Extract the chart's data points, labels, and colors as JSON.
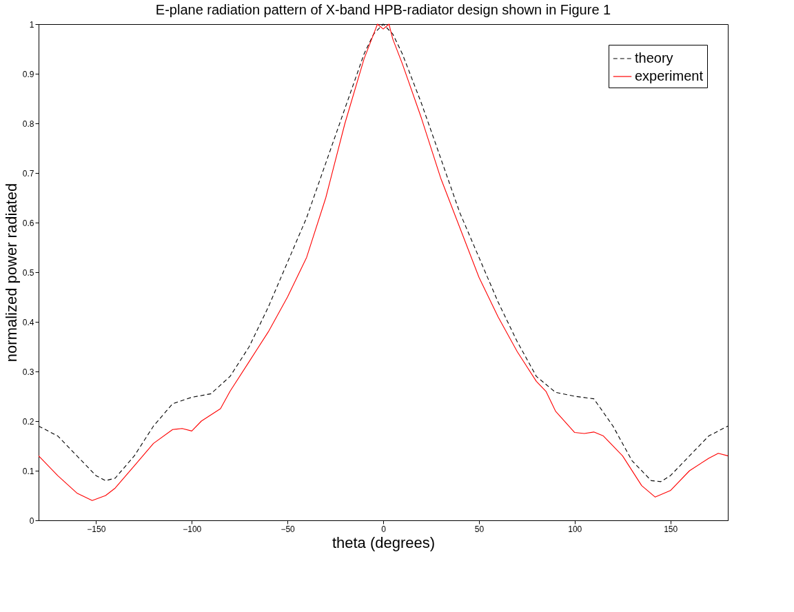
{
  "chart_data": {
    "type": "line",
    "title": "E-plane radiation pattern of X-band HPB-radiator design shown in Figure 1",
    "xlabel": "theta (degrees)",
    "ylabel": "normalized power radiated",
    "xlim": [
      -180,
      180
    ],
    "xticks": [
      -150,
      -100,
      -50,
      0,
      50,
      100,
      150
    ],
    "ylim": [
      0,
      1
    ],
    "yticks": [
      0,
      0.1,
      0.2,
      0.3,
      0.4,
      0.5,
      0.6,
      0.7,
      0.8,
      0.9,
      1
    ],
    "grid": false,
    "legend": "top right",
    "marker": "none",
    "series": [
      {
        "name": "theory",
        "color": "#000000",
        "line_style": "dashed",
        "x": [
          -180,
          -170,
          -160,
          -150,
          -145,
          -140,
          -130,
          -120,
          -110,
          -100,
          -90,
          -80,
          -70,
          -60,
          -50,
          -40,
          -30,
          -20,
          -10,
          -5,
          0,
          5,
          10,
          20,
          30,
          40,
          50,
          60,
          70,
          80,
          90,
          100,
          110,
          120,
          130,
          140,
          145,
          150,
          160,
          170,
          180
        ],
        "values": [
          0.19,
          0.17,
          0.13,
          0.09,
          0.08,
          0.085,
          0.13,
          0.19,
          0.235,
          0.248,
          0.255,
          0.29,
          0.35,
          0.43,
          0.52,
          0.61,
          0.72,
          0.83,
          0.94,
          0.98,
          1.0,
          0.98,
          0.94,
          0.84,
          0.73,
          0.62,
          0.53,
          0.44,
          0.36,
          0.29,
          0.258,
          0.25,
          0.245,
          0.19,
          0.12,
          0.08,
          0.078,
          0.09,
          0.13,
          0.17,
          0.19
        ]
      },
      {
        "name": "experiment",
        "color": "#ff0000",
        "line_style": "solid",
        "x": [
          -180,
          -170,
          -160,
          -152,
          -145,
          -140,
          -130,
          -120,
          -110,
          -105,
          -100,
          -95,
          -85,
          -80,
          -70,
          -60,
          -50,
          -40,
          -30,
          -20,
          -10,
          -5,
          -3,
          0,
          3,
          5,
          10,
          20,
          30,
          35,
          40,
          50,
          60,
          70,
          80,
          85,
          90,
          100,
          105,
          110,
          115,
          125,
          135,
          142,
          150,
          160,
          170,
          175,
          180
        ],
        "values": [
          0.13,
          0.09,
          0.055,
          0.04,
          0.05,
          0.065,
          0.11,
          0.155,
          0.183,
          0.185,
          0.18,
          0.2,
          0.225,
          0.26,
          0.32,
          0.38,
          0.45,
          0.53,
          0.65,
          0.8,
          0.93,
          0.98,
          1.0,
          0.99,
          1.0,
          0.97,
          0.92,
          0.81,
          0.69,
          0.64,
          0.59,
          0.49,
          0.41,
          0.34,
          0.28,
          0.26,
          0.22,
          0.177,
          0.175,
          0.178,
          0.17,
          0.13,
          0.07,
          0.047,
          0.06,
          0.1,
          0.125,
          0.135,
          0.13
        ]
      }
    ]
  }
}
